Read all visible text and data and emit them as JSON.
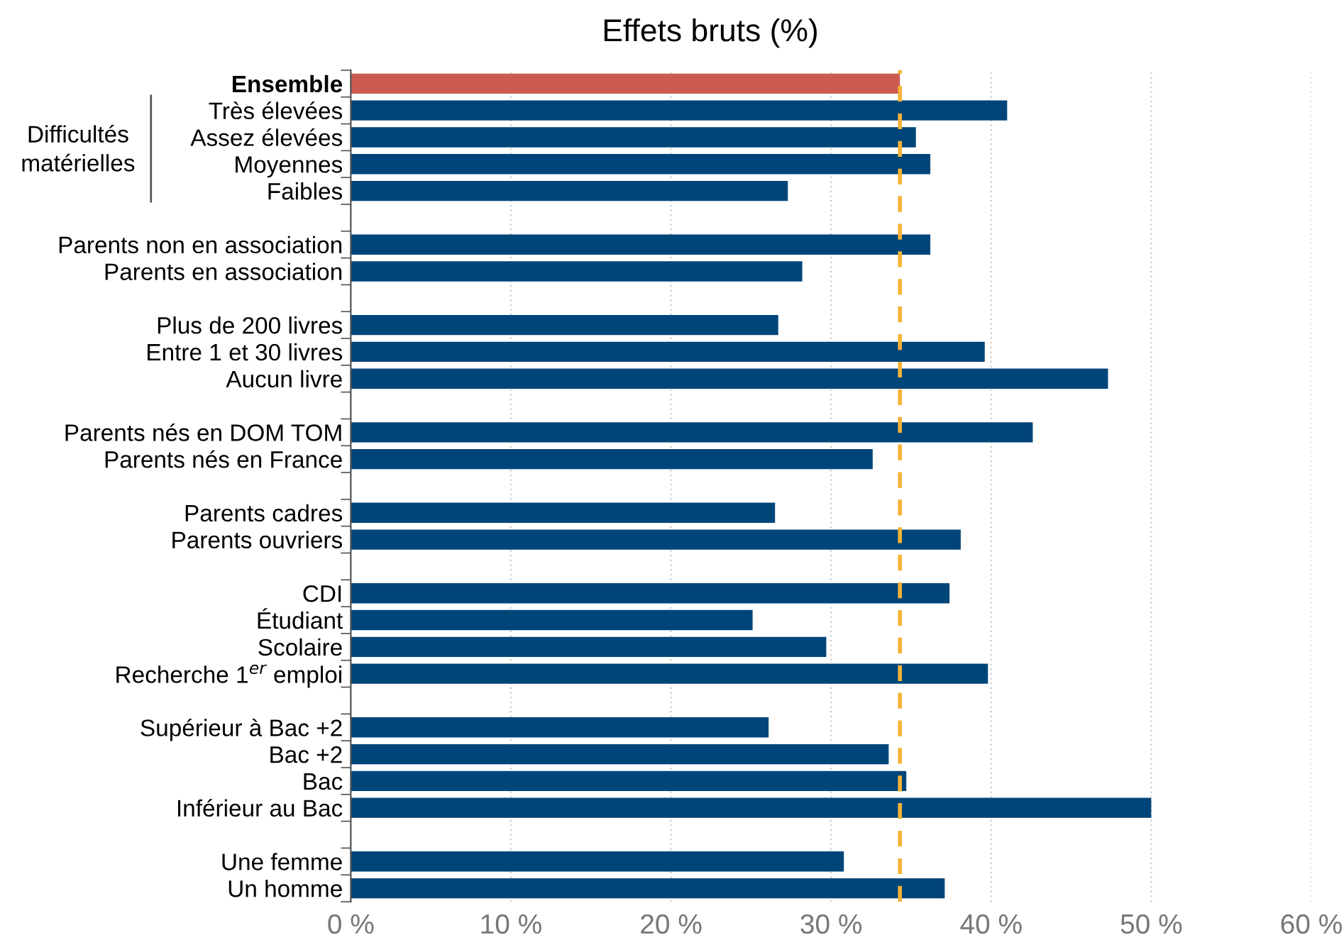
{
  "chart_data": {
    "type": "bar",
    "orientation": "horizontal",
    "title": "Effets bruts (%)",
    "categories": [
      "Ensemble",
      "Très élevées",
      "Assez élevées",
      "Moyennes",
      "Faibles",
      null,
      "Parents non en association",
      "Parents en association",
      null,
      "Plus de 200 livres",
      "Entre 1 et 30 livres",
      "Aucun livre",
      null,
      "Parents nés en DOM TOM",
      "Parents nés en France",
      null,
      "Parents cadres",
      "Parents ouvriers",
      null,
      "CDI",
      "Étudiant",
      "Scolaire",
      "Recherche 1$^{er}$ emploi",
      null,
      "Supérieur à Bac +2",
      "Bac +2",
      "Bac",
      "Inférieur au Bac",
      null,
      "Une femme",
      "Un homme"
    ],
    "values": [
      34.3,
      41.0,
      35.3,
      36.2,
      27.3,
      null,
      36.2,
      28.2,
      null,
      26.7,
      39.6,
      47.3,
      null,
      42.6,
      32.6,
      null,
      26.5,
      38.1,
      null,
      37.4,
      25.1,
      29.7,
      39.8,
      null,
      26.1,
      33.6,
      34.7,
      50.0,
      null,
      30.8,
      37.1
    ],
    "colors": [
      "#cd5c50",
      "#00457a",
      "#00457a",
      "#00457a",
      "#00457a",
      null,
      "#00457a",
      "#00457a",
      null,
      "#00457a",
      "#00457a",
      "#00457a",
      null,
      "#00457a",
      "#00457a",
      null,
      "#00457a",
      "#00457a",
      null,
      "#00457a",
      "#00457a",
      "#00457a",
      "#00457a",
      null,
      "#00457a",
      "#00457a",
      "#00457a",
      "#00457a",
      null,
      "#00457a",
      "#00457a"
    ],
    "annotations": [
      "Difficultés\nmatérielles"
    ],
    "ref_lines": [
      {
        "axis": "x",
        "value": 34.3,
        "label": null,
        "color": "#f5b335",
        "line_style": "dashed"
      }
    ],
    "xlim": [
      0,
      60
    ],
    "xticks": [
      {
        "value": 0,
        "label": "0 %"
      },
      {
        "value": 10,
        "label": "10 %"
      },
      {
        "value": 20,
        "label": "20 %"
      },
      {
        "value": 30,
        "label": "30 %"
      },
      {
        "value": 40,
        "label": "40 %"
      },
      {
        "value": 50,
        "label": "50 %"
      },
      {
        "value": 60,
        "label": "60 %"
      }
    ],
    "grid": "x",
    "legend": false
  }
}
